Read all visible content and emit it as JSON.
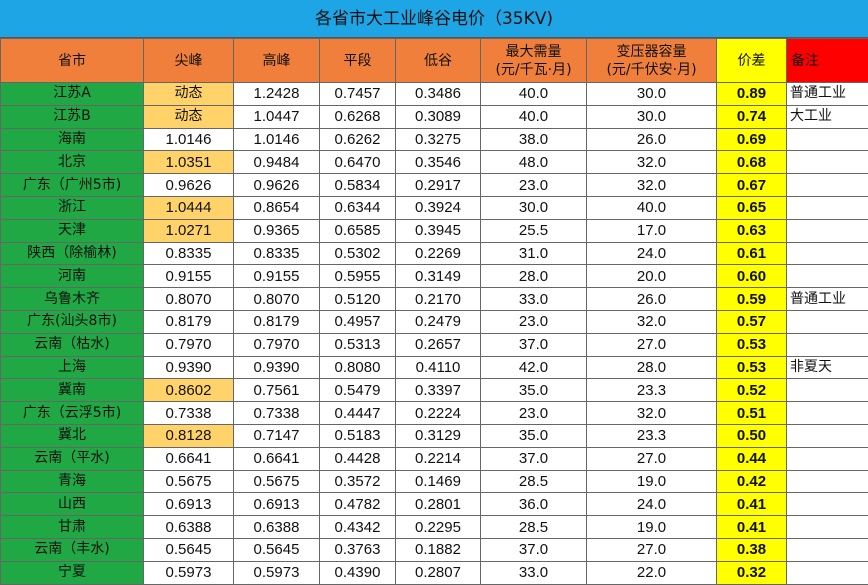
{
  "title": "各省市大工业峰谷电价（35KV)",
  "headers": {
    "province": "省市",
    "sharp_peak": "尖峰",
    "peak": "高峰",
    "flat": "平段",
    "valley": "低谷",
    "max_demand_l1": "最大需量",
    "max_demand_l2": "(元/千瓦·月)",
    "transformer_l1": "变压器容量",
    "transformer_l2": "(元/千伏安·月)",
    "diff": "价差",
    "note": "备注"
  },
  "colors": {
    "title_bg": "#1ea5e6",
    "header_bg": "#f07f3c",
    "province_bg": "#20a845",
    "highlight": "#ffd36a",
    "diff_bg": "#ffff00",
    "note_header": "#ff0000"
  },
  "rows": [
    {
      "province": "江苏A",
      "sharp": "动态",
      "peak": "1.2428",
      "flat": "0.7457",
      "valley": "0.3486",
      "demand": "40.0",
      "transformer": "30.0",
      "diff": "0.89",
      "note": "普通工业",
      "hl": true
    },
    {
      "province": "江苏B",
      "sharp": "动态",
      "peak": "1.0447",
      "flat": "0.6268",
      "valley": "0.3089",
      "demand": "40.0",
      "transformer": "30.0",
      "diff": "0.74",
      "note": "大工业",
      "hl": true
    },
    {
      "province": "海南",
      "sharp": "1.0146",
      "peak": "1.0146",
      "flat": "0.6262",
      "valley": "0.3275",
      "demand": "38.0",
      "transformer": "26.0",
      "diff": "0.69",
      "note": "",
      "hl": false
    },
    {
      "province": "北京",
      "sharp": "1.0351",
      "peak": "0.9484",
      "flat": "0.6470",
      "valley": "0.3546",
      "demand": "48.0",
      "transformer": "32.0",
      "diff": "0.68",
      "note": "",
      "hl": true
    },
    {
      "province": "广东（广州5市)",
      "sharp": "0.9626",
      "peak": "0.9626",
      "flat": "0.5834",
      "valley": "0.2917",
      "demand": "23.0",
      "transformer": "32.0",
      "diff": "0.67",
      "note": "",
      "hl": false
    },
    {
      "province": "浙江",
      "sharp": "1.0444",
      "peak": "0.8654",
      "flat": "0.6344",
      "valley": "0.3924",
      "demand": "30.0",
      "transformer": "40.0",
      "diff": "0.65",
      "note": "",
      "hl": true
    },
    {
      "province": "天津",
      "sharp": "1.0271",
      "peak": "0.9365",
      "flat": "0.6585",
      "valley": "0.3945",
      "demand": "25.5",
      "transformer": "17.0",
      "diff": "0.63",
      "note": "",
      "hl": true
    },
    {
      "province": "陕西（除榆林)",
      "sharp": "0.8335",
      "peak": "0.8335",
      "flat": "0.5302",
      "valley": "0.2269",
      "demand": "31.0",
      "transformer": "24.0",
      "diff": "0.61",
      "note": "",
      "hl": false
    },
    {
      "province": "河南",
      "sharp": "0.9155",
      "peak": "0.9155",
      "flat": "0.5955",
      "valley": "0.3149",
      "demand": "28.0",
      "transformer": "20.0",
      "diff": "0.60",
      "note": "",
      "hl": false
    },
    {
      "province": "乌鲁木齐",
      "sharp": "0.8070",
      "peak": "0.8070",
      "flat": "0.5120",
      "valley": "0.2170",
      "demand": "33.0",
      "transformer": "26.0",
      "diff": "0.59",
      "note": "普通工业",
      "hl": false
    },
    {
      "province": "广东(汕头8市)",
      "sharp": "0.8179",
      "peak": "0.8179",
      "flat": "0.4957",
      "valley": "0.2479",
      "demand": "23.0",
      "transformer": "32.0",
      "diff": "0.57",
      "note": "",
      "hl": false
    },
    {
      "province": "云南（枯水)",
      "sharp": "0.7970",
      "peak": "0.7970",
      "flat": "0.5313",
      "valley": "0.2657",
      "demand": "37.0",
      "transformer": "27.0",
      "diff": "0.53",
      "note": "",
      "hl": false
    },
    {
      "province": "上海",
      "sharp": "0.9390",
      "peak": "0.9390",
      "flat": "0.8080",
      "valley": "0.4110",
      "demand": "42.0",
      "transformer": "28.0",
      "diff": "0.53",
      "note": "非夏天",
      "hl": false
    },
    {
      "province": "冀南",
      "sharp": "0.8602",
      "peak": "0.7561",
      "flat": "0.5479",
      "valley": "0.3397",
      "demand": "35.0",
      "transformer": "23.3",
      "diff": "0.52",
      "note": "",
      "hl": true
    },
    {
      "province": "广东（云浮5市)",
      "sharp": "0.7338",
      "peak": "0.7338",
      "flat": "0.4447",
      "valley": "0.2224",
      "demand": "23.0",
      "transformer": "32.0",
      "diff": "0.51",
      "note": "",
      "hl": false
    },
    {
      "province": "冀北",
      "sharp": "0.8128",
      "peak": "0.7147",
      "flat": "0.5183",
      "valley": "0.3129",
      "demand": "35.0",
      "transformer": "23.3",
      "diff": "0.50",
      "note": "",
      "hl": true
    },
    {
      "province": "云南（平水)",
      "sharp": "0.6641",
      "peak": "0.6641",
      "flat": "0.4428",
      "valley": "0.2214",
      "demand": "37.0",
      "transformer": "27.0",
      "diff": "0.44",
      "note": "",
      "hl": false
    },
    {
      "province": "青海",
      "sharp": "0.5675",
      "peak": "0.5675",
      "flat": "0.3572",
      "valley": "0.1469",
      "demand": "28.5",
      "transformer": "19.0",
      "diff": "0.42",
      "note": "",
      "hl": false
    },
    {
      "province": "山西",
      "sharp": "0.6913",
      "peak": "0.6913",
      "flat": "0.4782",
      "valley": "0.2801",
      "demand": "36.0",
      "transformer": "24.0",
      "diff": "0.41",
      "note": "",
      "hl": false
    },
    {
      "province": "甘肃",
      "sharp": "0.6388",
      "peak": "0.6388",
      "flat": "0.4342",
      "valley": "0.2295",
      "demand": "28.5",
      "transformer": "19.0",
      "diff": "0.41",
      "note": "",
      "hl": false
    },
    {
      "province": "云南（丰水)",
      "sharp": "0.5645",
      "peak": "0.5645",
      "flat": "0.3763",
      "valley": "0.1882",
      "demand": "37.0",
      "transformer": "27.0",
      "diff": "0.38",
      "note": "",
      "hl": false
    },
    {
      "province": "宁夏",
      "sharp": "0.5973",
      "peak": "0.5973",
      "flat": "0.4390",
      "valley": "0.2807",
      "demand": "33.0",
      "transformer": "22.0",
      "diff": "0.32",
      "note": "",
      "hl": false
    }
  ]
}
